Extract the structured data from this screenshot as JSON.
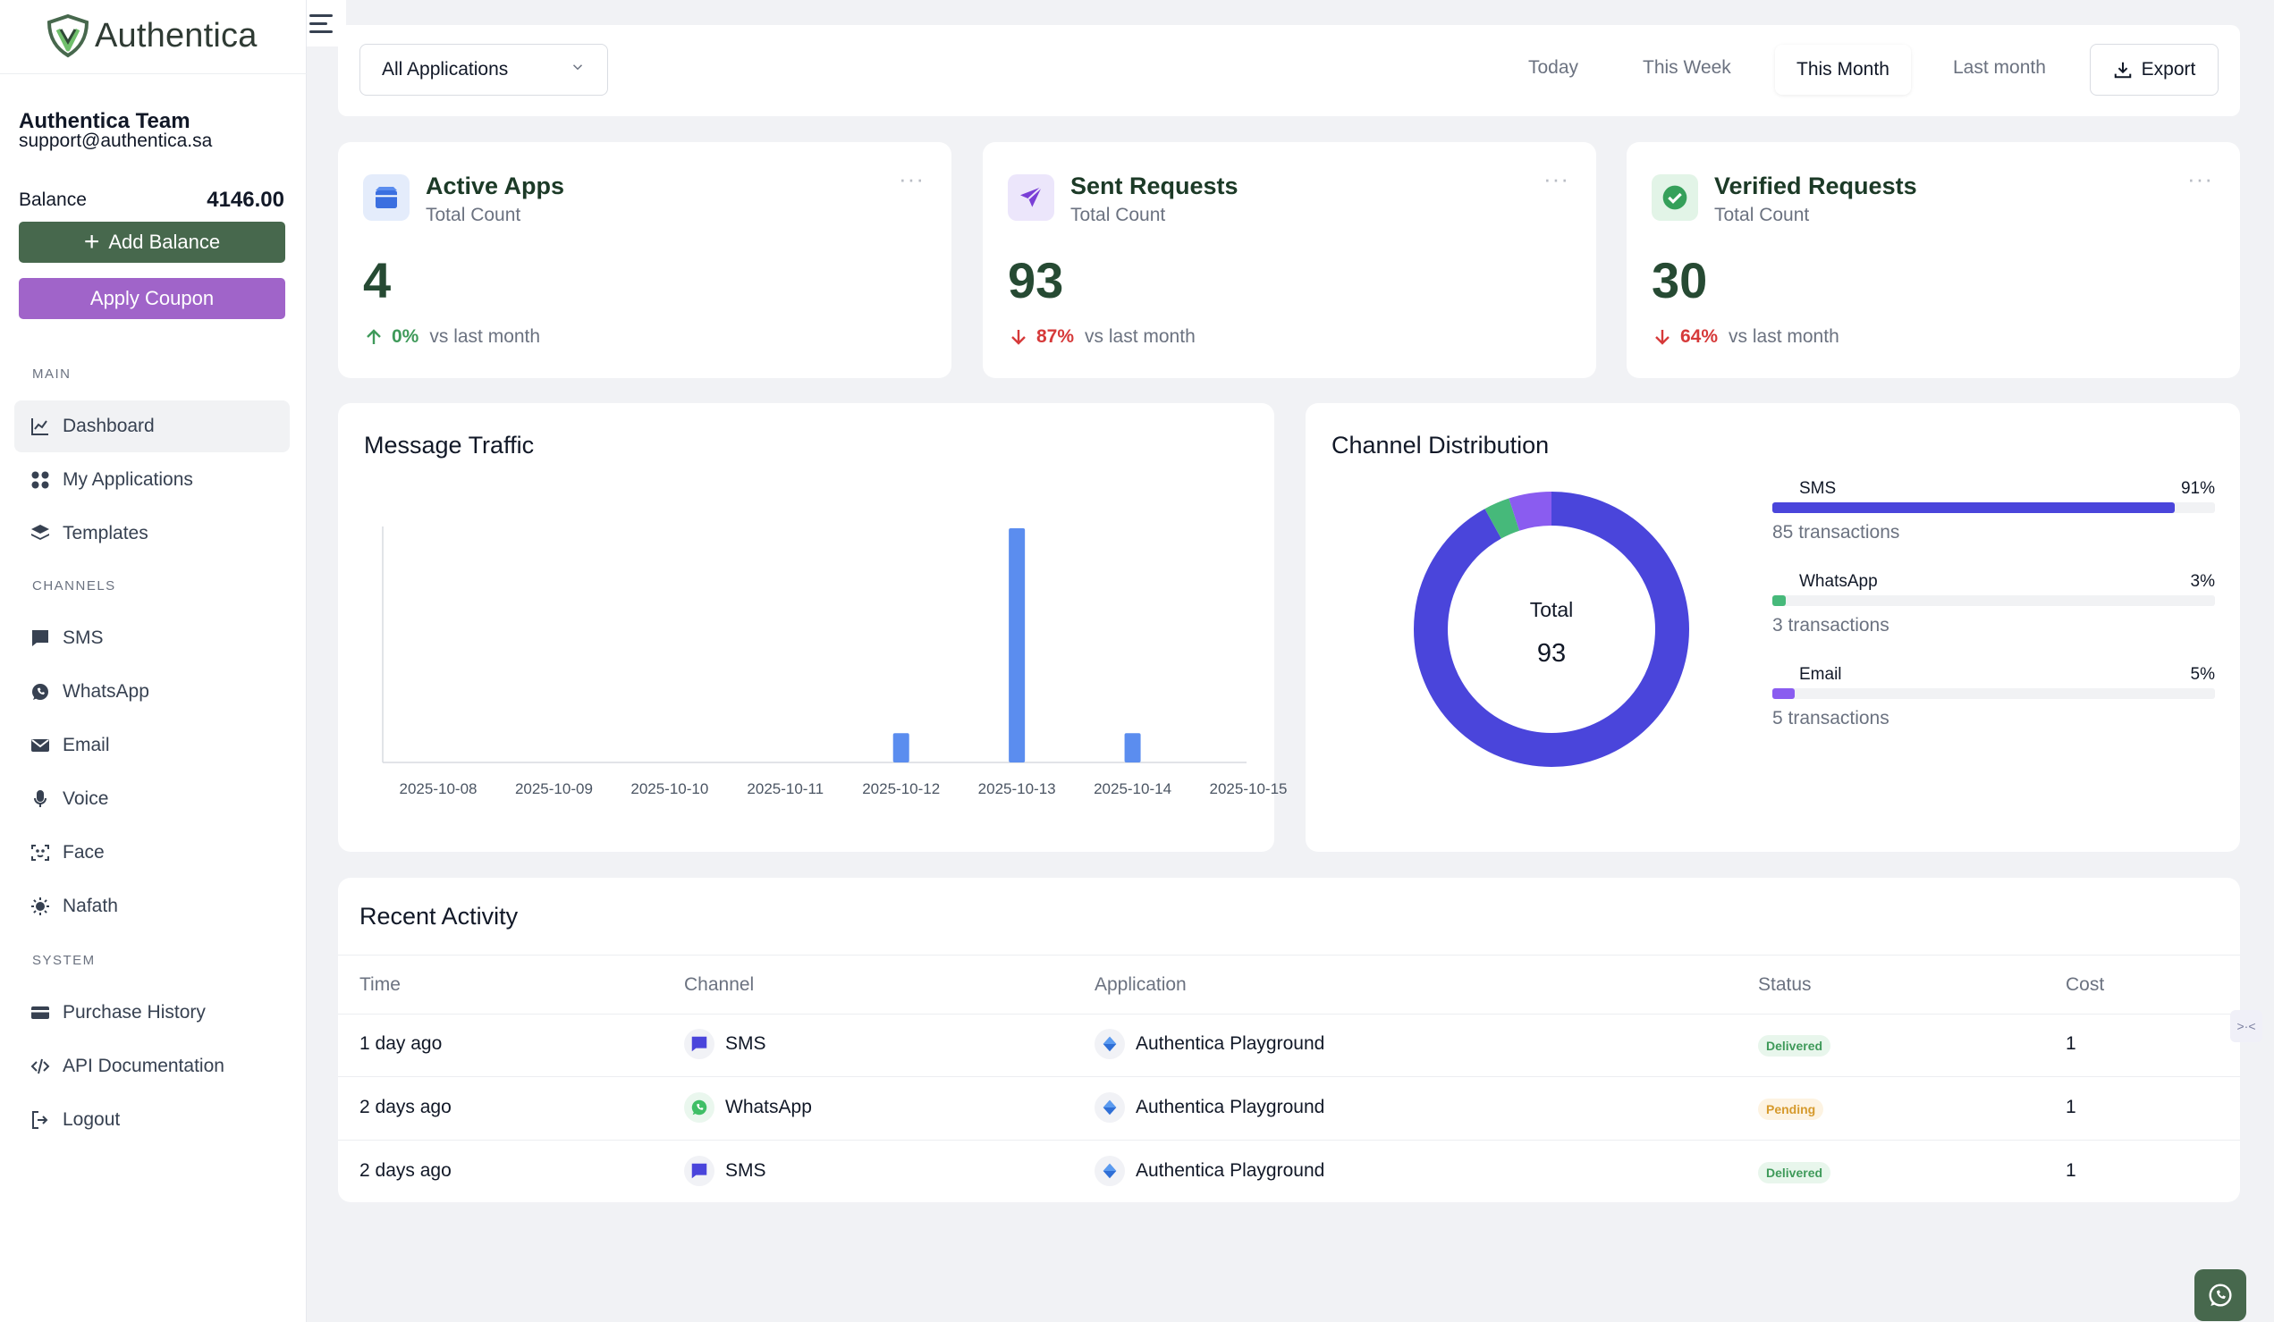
{
  "brand": {
    "name": "Authentica",
    "accent": "#47684d",
    "coupon_color": "#a064c9"
  },
  "account": {
    "team_name": "Authentica Team",
    "email": "support@authentica.sa",
    "balance_label": "Balance",
    "balance_value": "4146.00",
    "add_balance_label": "Add Balance",
    "apply_coupon_label": "Apply Coupon"
  },
  "nav": {
    "main_label": "MAIN",
    "channels_label": "CHANNELS",
    "system_label": "SYSTEM",
    "main": [
      {
        "label": "Dashboard",
        "icon": "chart-line-icon",
        "active": true
      },
      {
        "label": "My Applications",
        "icon": "apps-grid-icon"
      },
      {
        "label": "Templates",
        "icon": "layers-icon"
      }
    ],
    "channels": [
      {
        "label": "SMS",
        "icon": "message-icon"
      },
      {
        "label": "WhatsApp",
        "icon": "whatsapp-icon"
      },
      {
        "label": "Email",
        "icon": "mail-icon"
      },
      {
        "label": "Voice",
        "icon": "microphone-icon"
      },
      {
        "label": "Face",
        "icon": "face-scan-icon"
      },
      {
        "label": "Nafath",
        "icon": "sun-icon"
      }
    ],
    "system": [
      {
        "label": "Purchase History",
        "icon": "credit-card-icon"
      },
      {
        "label": "API Documentation",
        "icon": "code-icon"
      },
      {
        "label": "Logout",
        "icon": "logout-icon"
      }
    ]
  },
  "header": {
    "app_filter": "All Applications",
    "periods": [
      "Today",
      "This Week",
      "This Month",
      "Last month"
    ],
    "active_period": "This Month",
    "export_label": "Export"
  },
  "stats": [
    {
      "title": "Active Apps",
      "subtitle": "Total Count",
      "value": "4",
      "change": "0%",
      "direction": "up",
      "compare": "vs last month",
      "icon": "box-icon",
      "color": "#3f9a5a"
    },
    {
      "title": "Sent Requests",
      "subtitle": "Total Count",
      "value": "93",
      "change": "87%",
      "direction": "down",
      "compare": "vs last month",
      "icon": "send-icon",
      "color": "#d63a3a"
    },
    {
      "title": "Verified Requests",
      "subtitle": "Total Count",
      "value": "30",
      "change": "64%",
      "direction": "down",
      "compare": "vs last month",
      "icon": "check-circle-icon",
      "color": "#d63a3a"
    }
  ],
  "traffic": {
    "title": "Message Traffic",
    "chart_data": {
      "type": "bar",
      "categories": [
        "2025-10-08",
        "2025-10-09",
        "2025-10-10",
        "2025-10-11",
        "2025-10-12",
        "2025-10-13",
        "2025-10-14",
        "2025-10-15"
      ],
      "values": [
        0,
        0,
        0,
        0,
        8,
        64,
        8,
        0
      ],
      "ylim": [
        0,
        64
      ],
      "grid": false,
      "color": "#5b8def"
    }
  },
  "distribution": {
    "title": "Channel Distribution",
    "total_label": "Total",
    "total_value": "93",
    "chart_data": {
      "type": "pie",
      "donut": true,
      "slices": [
        {
          "name": "SMS",
          "percent": 91,
          "transactions": "85 transactions",
          "color": "#4a45db"
        },
        {
          "name": "WhatsApp",
          "percent": 3,
          "transactions": "3 transactions",
          "color": "#46b97a"
        },
        {
          "name": "Email",
          "percent": 5,
          "transactions": "5 transactions",
          "color": "#8a5cf0"
        }
      ]
    }
  },
  "activity": {
    "title": "Recent Activity",
    "columns": [
      "Time",
      "Channel",
      "Application",
      "Status",
      "Cost"
    ],
    "rows": [
      {
        "time": "1 day ago",
        "channel": "SMS",
        "application": "Authentica Playground",
        "status": "Delivered",
        "cost": "1"
      },
      {
        "time": "2 days ago",
        "channel": "WhatsApp",
        "application": "Authentica Playground",
        "status": "Pending",
        "cost": "1"
      },
      {
        "time": "2 days ago",
        "channel": "SMS",
        "application": "Authentica Playground",
        "status": "Delivered",
        "cost": "1"
      }
    ]
  }
}
